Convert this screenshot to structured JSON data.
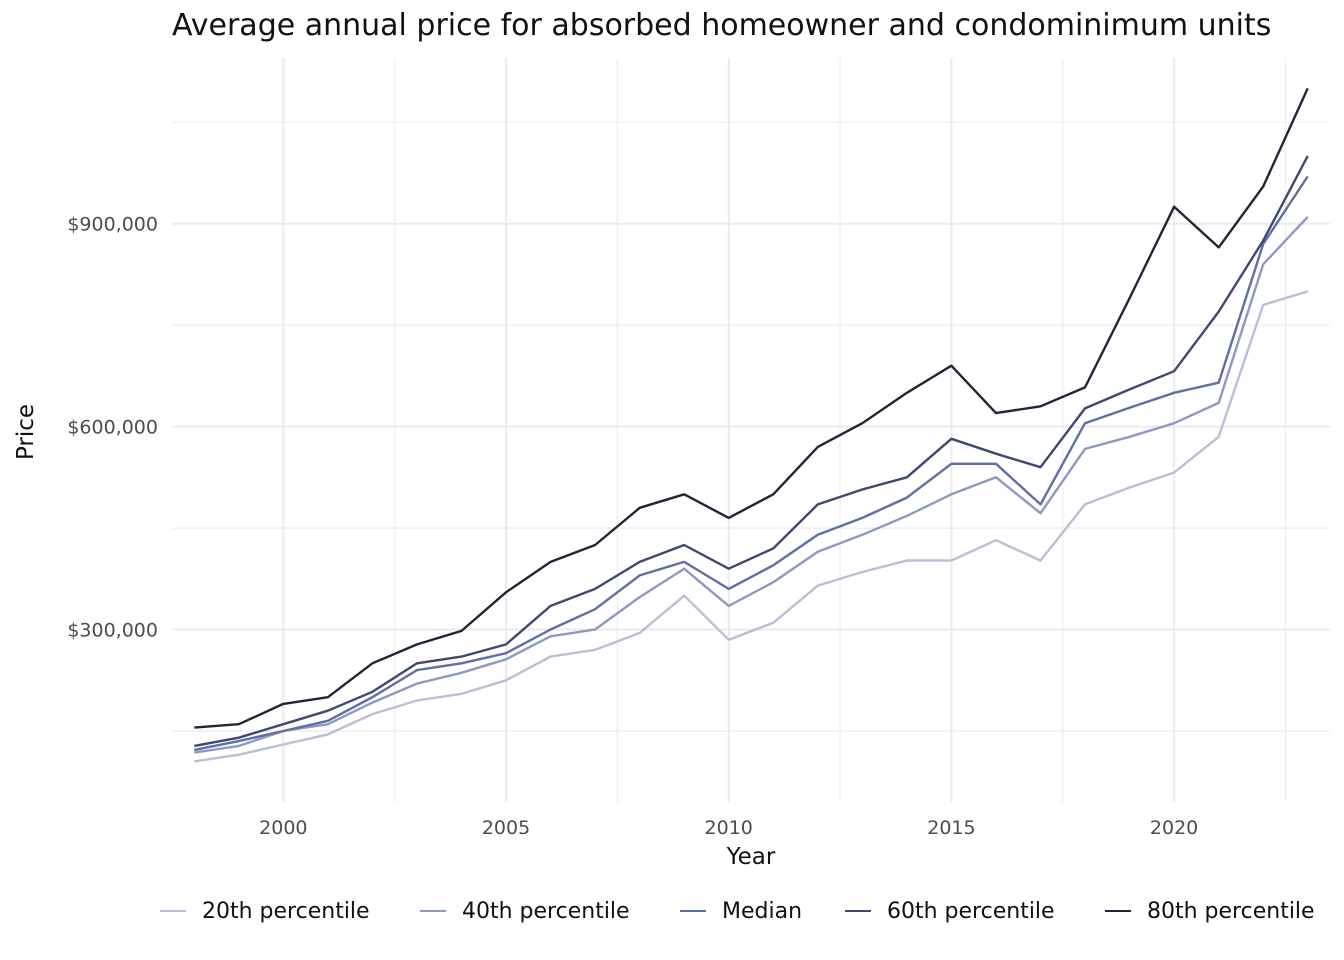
{
  "chart_data": {
    "type": "line",
    "title": "Average annual price for absorbed homeowner and condominimum units",
    "xlabel": "Year",
    "ylabel": "Price",
    "xlim": [
      1997.5,
      2023.5
    ],
    "ylim": [
      45000,
      1145000
    ],
    "x_ticks": [
      2000,
      2005,
      2010,
      2015,
      2020
    ],
    "x_tick_labels": [
      "2000",
      "2005",
      "2010",
      "2015",
      "2020"
    ],
    "y_ticks": [
      300000,
      600000,
      900000
    ],
    "y_tick_labels": [
      "$300,000",
      "$600,000",
      "$900,000"
    ],
    "grid": true,
    "legend_position": "bottom",
    "x": [
      1998,
      1999,
      2000,
      2001,
      2002,
      2003,
      2004,
      2005,
      2006,
      2007,
      2008,
      2009,
      2010,
      2011,
      2012,
      2013,
      2014,
      2015,
      2016,
      2017,
      2018,
      2019,
      2020,
      2021,
      2022,
      2023
    ],
    "series": [
      {
        "name": "20th percentile",
        "color": "#b8c0d8",
        "values": [
          105000,
          115000,
          130000,
          145000,
          175000,
          195000,
          205000,
          225000,
          260000,
          270000,
          295000,
          350000,
          285000,
          310000,
          365000,
          385000,
          402000,
          402000,
          432000,
          402000,
          485000,
          510000,
          532000,
          585000,
          780000,
          800000
        ]
      },
      {
        "name": "40th percentile",
        "color": "#8d99c4",
        "values": [
          118000,
          128000,
          150000,
          160000,
          192000,
          220000,
          236000,
          256000,
          290000,
          300000,
          348000,
          390000,
          335000,
          370000,
          415000,
          440000,
          468000,
          500000,
          525000,
          472000,
          567000,
          585000,
          605000,
          635000,
          840000,
          910000
        ]
      },
      {
        "name": "Median",
        "color": "#5f6ea6",
        "values": [
          122000,
          135000,
          150000,
          165000,
          200000,
          240000,
          250000,
          265000,
          300000,
          330000,
          380000,
          400000,
          360000,
          395000,
          440000,
          465000,
          495000,
          545000,
          545000,
          485000,
          605000,
          628000,
          650000,
          665000,
          870000,
          970000
        ]
      },
      {
        "name": "60th percentile",
        "color": "#3e4872",
        "values": [
          128000,
          140000,
          160000,
          180000,
          208000,
          250000,
          260000,
          278000,
          335000,
          360000,
          400000,
          425000,
          390000,
          420000,
          485000,
          507000,
          525000,
          582000,
          560000,
          540000,
          627000,
          655000,
          682000,
          770000,
          875000,
          1000000
        ]
      },
      {
        "name": "80th percentile",
        "color": "#1f2638",
        "values": [
          155000,
          160000,
          190000,
          200000,
          250000,
          278000,
          298000,
          355000,
          400000,
          425000,
          480000,
          500000,
          465000,
          500000,
          570000,
          605000,
          650000,
          690000,
          620000,
          630000,
          658000,
          790000,
          925000,
          865000,
          955000,
          1100000
        ]
      }
    ]
  }
}
